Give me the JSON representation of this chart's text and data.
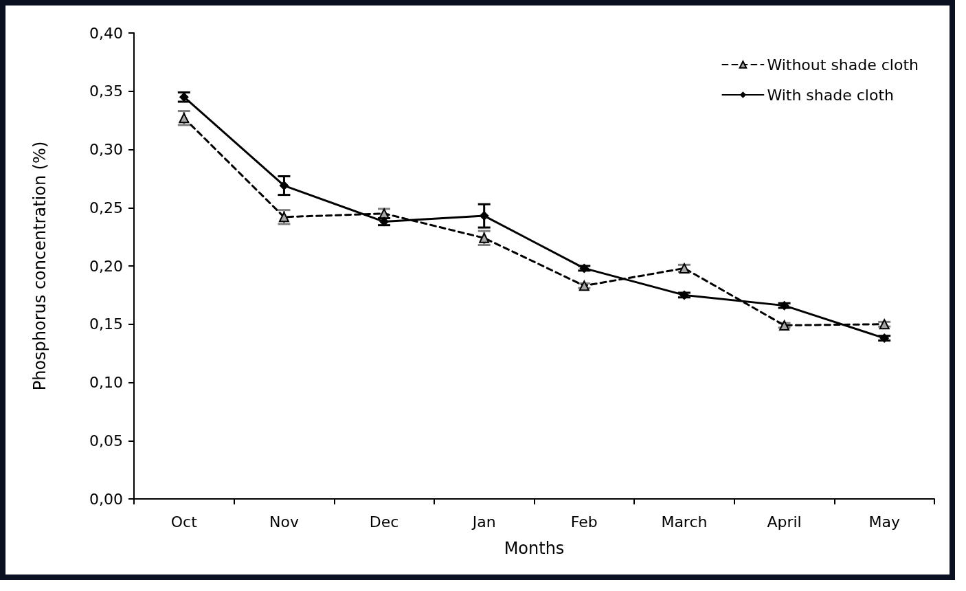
{
  "chart_data": {
    "type": "line",
    "xlabel": "Months",
    "ylabel": "Phosphorus concentration (%)",
    "categories": [
      "Oct",
      "Nov",
      "Dec",
      "Jan",
      "Feb",
      "March",
      "April",
      "May"
    ],
    "series": [
      {
        "name": "Without shade cloth",
        "color": "#a6a6a6",
        "marker": "triangle",
        "line_style": "dashed",
        "values": [
          0.327,
          0.242,
          0.245,
          0.224,
          0.183,
          0.198,
          0.149,
          0.15
        ],
        "errors": [
          0.006,
          0.006,
          0.004,
          0.006,
          0.002,
          0.003,
          0.002,
          0.002
        ]
      },
      {
        "name": "With shade cloth",
        "color": "#000000",
        "marker": "diamond",
        "line_style": "solid",
        "values": [
          0.345,
          0.269,
          0.238,
          0.243,
          0.198,
          0.175,
          0.166,
          0.138
        ],
        "errors": [
          0.004,
          0.008,
          0.003,
          0.01,
          0.002,
          0.002,
          0.002,
          0.002
        ]
      }
    ],
    "ylim": [
      0,
      0.4
    ],
    "yticks": [
      {
        "value": 0,
        "label": "0,00"
      },
      {
        "value": 0.05,
        "label": "0,05"
      },
      {
        "value": 0.1,
        "label": "0,10"
      },
      {
        "value": 0.15,
        "label": "0,15"
      },
      {
        "value": 0.2,
        "label": "0,20"
      },
      {
        "value": 0.25,
        "label": "0,25"
      },
      {
        "value": 0.3,
        "label": "0,30"
      },
      {
        "value": 0.35,
        "label": "0,35"
      },
      {
        "value": 0.4,
        "label": "0,40"
      }
    ],
    "grid": false,
    "legend": "top right"
  }
}
